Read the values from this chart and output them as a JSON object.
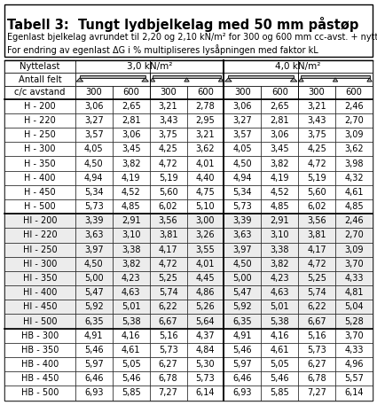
{
  "title": "Tabell 3:  Tungt lydbjelkelag med 50 mm påstøp",
  "subtitle1": "Egenlast bjelkelag avrundet til 2,20 og 2,10 kN/m² for 300 og 600 mm cc-avst. + nyttelast",
  "subtitle2": "For endring av egenlast ΔG i % multipliseres lysåpningen med faktor kL",
  "rows": [
    [
      "H - 200",
      "3,06",
      "2,65",
      "3,21",
      "2,78",
      "3,06",
      "2,65",
      "3,21",
      "2,46"
    ],
    [
      "H - 220",
      "3,27",
      "2,81",
      "3,43",
      "2,95",
      "3,27",
      "2,81",
      "3,43",
      "2,70"
    ],
    [
      "H - 250",
      "3,57",
      "3,06",
      "3,75",
      "3,21",
      "3,57",
      "3,06",
      "3,75",
      "3,09"
    ],
    [
      "H - 300",
      "4,05",
      "3,45",
      "4,25",
      "3,62",
      "4,05",
      "3,45",
      "4,25",
      "3,62"
    ],
    [
      "H - 350",
      "4,50",
      "3,82",
      "4,72",
      "4,01",
      "4,50",
      "3,82",
      "4,72",
      "3,98"
    ],
    [
      "H - 400",
      "4,94",
      "4,19",
      "5,19",
      "4,40",
      "4,94",
      "4,19",
      "5,19",
      "4,32"
    ],
    [
      "H - 450",
      "5,34",
      "4,52",
      "5,60",
      "4,75",
      "5,34",
      "4,52",
      "5,60",
      "4,61"
    ],
    [
      "H - 500",
      "5,73",
      "4,85",
      "6,02",
      "5,10",
      "5,73",
      "4,85",
      "6,02",
      "4,85"
    ],
    [
      "HI - 200",
      "3,39",
      "2,91",
      "3,56",
      "3,00",
      "3,39",
      "2,91",
      "3,56",
      "2,46"
    ],
    [
      "HI - 220",
      "3,63",
      "3,10",
      "3,81",
      "3,26",
      "3,63",
      "3,10",
      "3,81",
      "2,70"
    ],
    [
      "HI - 250",
      "3,97",
      "3,38",
      "4,17",
      "3,55",
      "3,97",
      "3,38",
      "4,17",
      "3,09"
    ],
    [
      "HI - 300",
      "4,50",
      "3,82",
      "4,72",
      "4,01",
      "4,50",
      "3,82",
      "4,72",
      "3,70"
    ],
    [
      "HI - 350",
      "5,00",
      "4,23",
      "5,25",
      "4,45",
      "5,00",
      "4,23",
      "5,25",
      "4,33"
    ],
    [
      "HI - 400",
      "5,47",
      "4,63",
      "5,74",
      "4,86",
      "5,47",
      "4,63",
      "5,74",
      "4,81"
    ],
    [
      "HI - 450",
      "5,92",
      "5,01",
      "6,22",
      "5,26",
      "5,92",
      "5,01",
      "6,22",
      "5,04"
    ],
    [
      "HI - 500",
      "6,35",
      "5,38",
      "6,67",
      "5,64",
      "6,35",
      "5,38",
      "6,67",
      "5,28"
    ],
    [
      "HB - 300",
      "4,91",
      "4,16",
      "5,16",
      "4,37",
      "4,91",
      "4,16",
      "5,16",
      "3,70"
    ],
    [
      "HB - 350",
      "5,46",
      "4,61",
      "5,73",
      "4,84",
      "5,46",
      "4,61",
      "5,73",
      "4,33"
    ],
    [
      "HB - 400",
      "5,97",
      "5,05",
      "6,27",
      "5,30",
      "5,97",
      "5,05",
      "6,27",
      "4,96"
    ],
    [
      "HB - 450",
      "6,46",
      "5,46",
      "6,78",
      "5,73",
      "6,46",
      "5,46",
      "6,78",
      "5,57"
    ],
    [
      "HB - 500",
      "6,93",
      "5,85",
      "7,27",
      "6,14",
      "6,93",
      "5,85",
      "7,27",
      "6,14"
    ]
  ],
  "bg_color_H": "#ffffff",
  "bg_color_HI": "#ececec",
  "bg_color_HB": "#ffffff",
  "bg_color_header": "#ffffff",
  "font_size_title": 10.5,
  "font_size_subtitle": 7.0,
  "font_size_header": 7.2,
  "font_size_data": 7.0
}
